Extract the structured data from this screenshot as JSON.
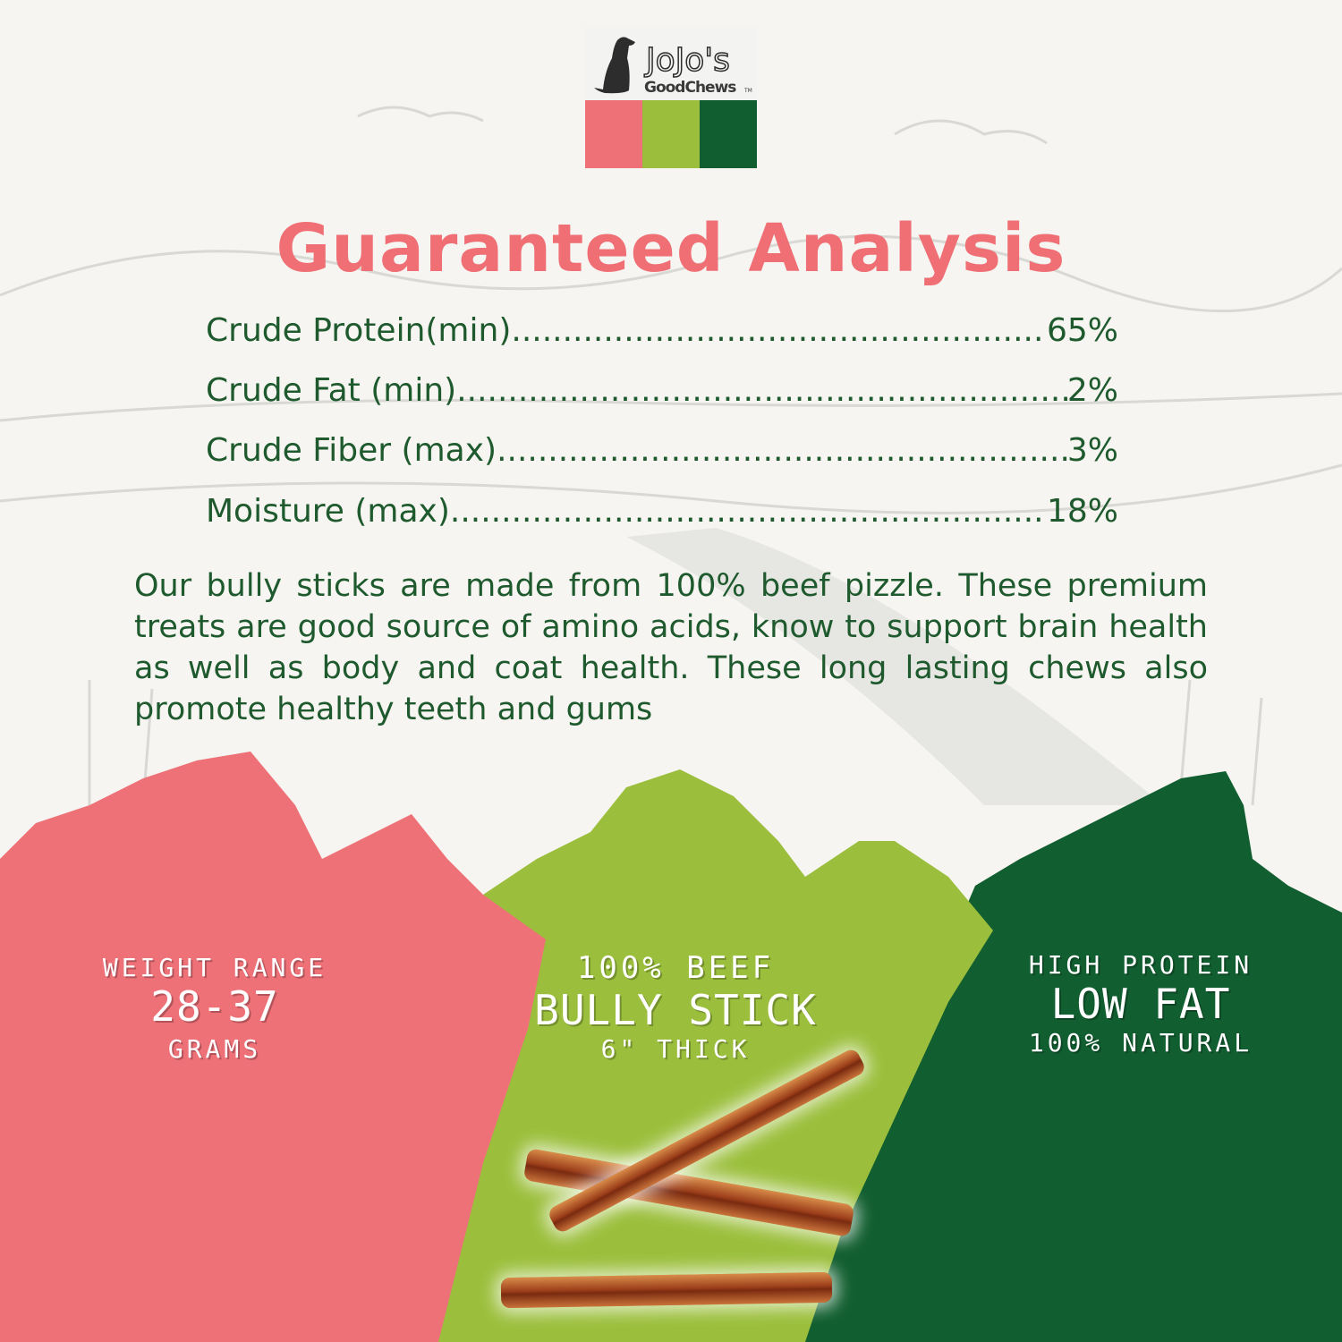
{
  "brand": {
    "logo_line1": "JoJo's",
    "logo_line2": "GoodChews",
    "trademark": "TM",
    "colors": {
      "pink": "#ef7178",
      "light_green": "#9bbf3c",
      "dark_green": "#115e30"
    }
  },
  "title": "Guaranteed Analysis",
  "analysis": [
    {
      "label": "Crude Protein(min)",
      "value": "65%"
    },
    {
      "label": "Crude Fat (min)",
      "value": "2%"
    },
    {
      "label": "Crude Fiber (max)",
      "value": "3%"
    },
    {
      "label": "Moisture (max)",
      "value": "18%"
    }
  ],
  "description": "Our bully sticks are made from 100% beef pizzle. These premium treats are good source of amino acids, know to support brain health as well as body and coat health. These long lasting chews also promote healthy teeth and gums",
  "badges": [
    {
      "line1": "WEIGHT RANGE",
      "line2": "28-37",
      "line3": "GRAMS"
    },
    {
      "line1": "100% BEEF",
      "line2": "BULLY STICK",
      "line3": "6\" THICK"
    },
    {
      "line1": "HIGH PROTEIN",
      "line2": "LOW FAT",
      "line3": "100% NATURAL"
    }
  ]
}
